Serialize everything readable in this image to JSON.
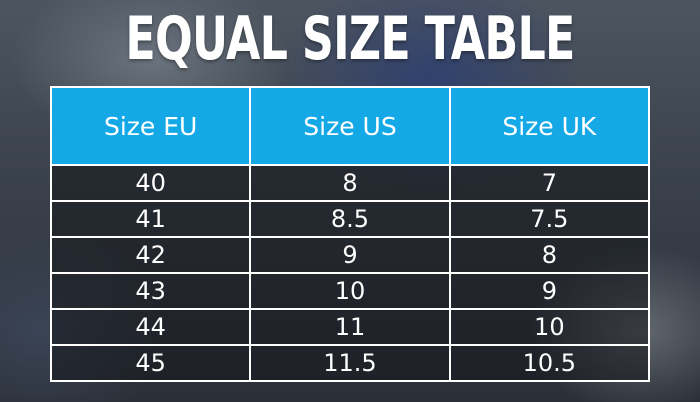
{
  "title": "EQUAL SIZE TABLE",
  "colors": {
    "header_bg": "#14a9e6",
    "text": "#ffffff",
    "grid": "#ffffff"
  },
  "table": {
    "headers": [
      "Size EU",
      "Size US",
      "Size UK"
    ],
    "rows": [
      [
        "40",
        "8",
        "7"
      ],
      [
        "41",
        "8.5",
        "7.5"
      ],
      [
        "42",
        "9",
        "8"
      ],
      [
        "43",
        "10",
        "9"
      ],
      [
        "44",
        "11",
        "10"
      ],
      [
        "45",
        "11.5",
        "10.5"
      ]
    ]
  }
}
